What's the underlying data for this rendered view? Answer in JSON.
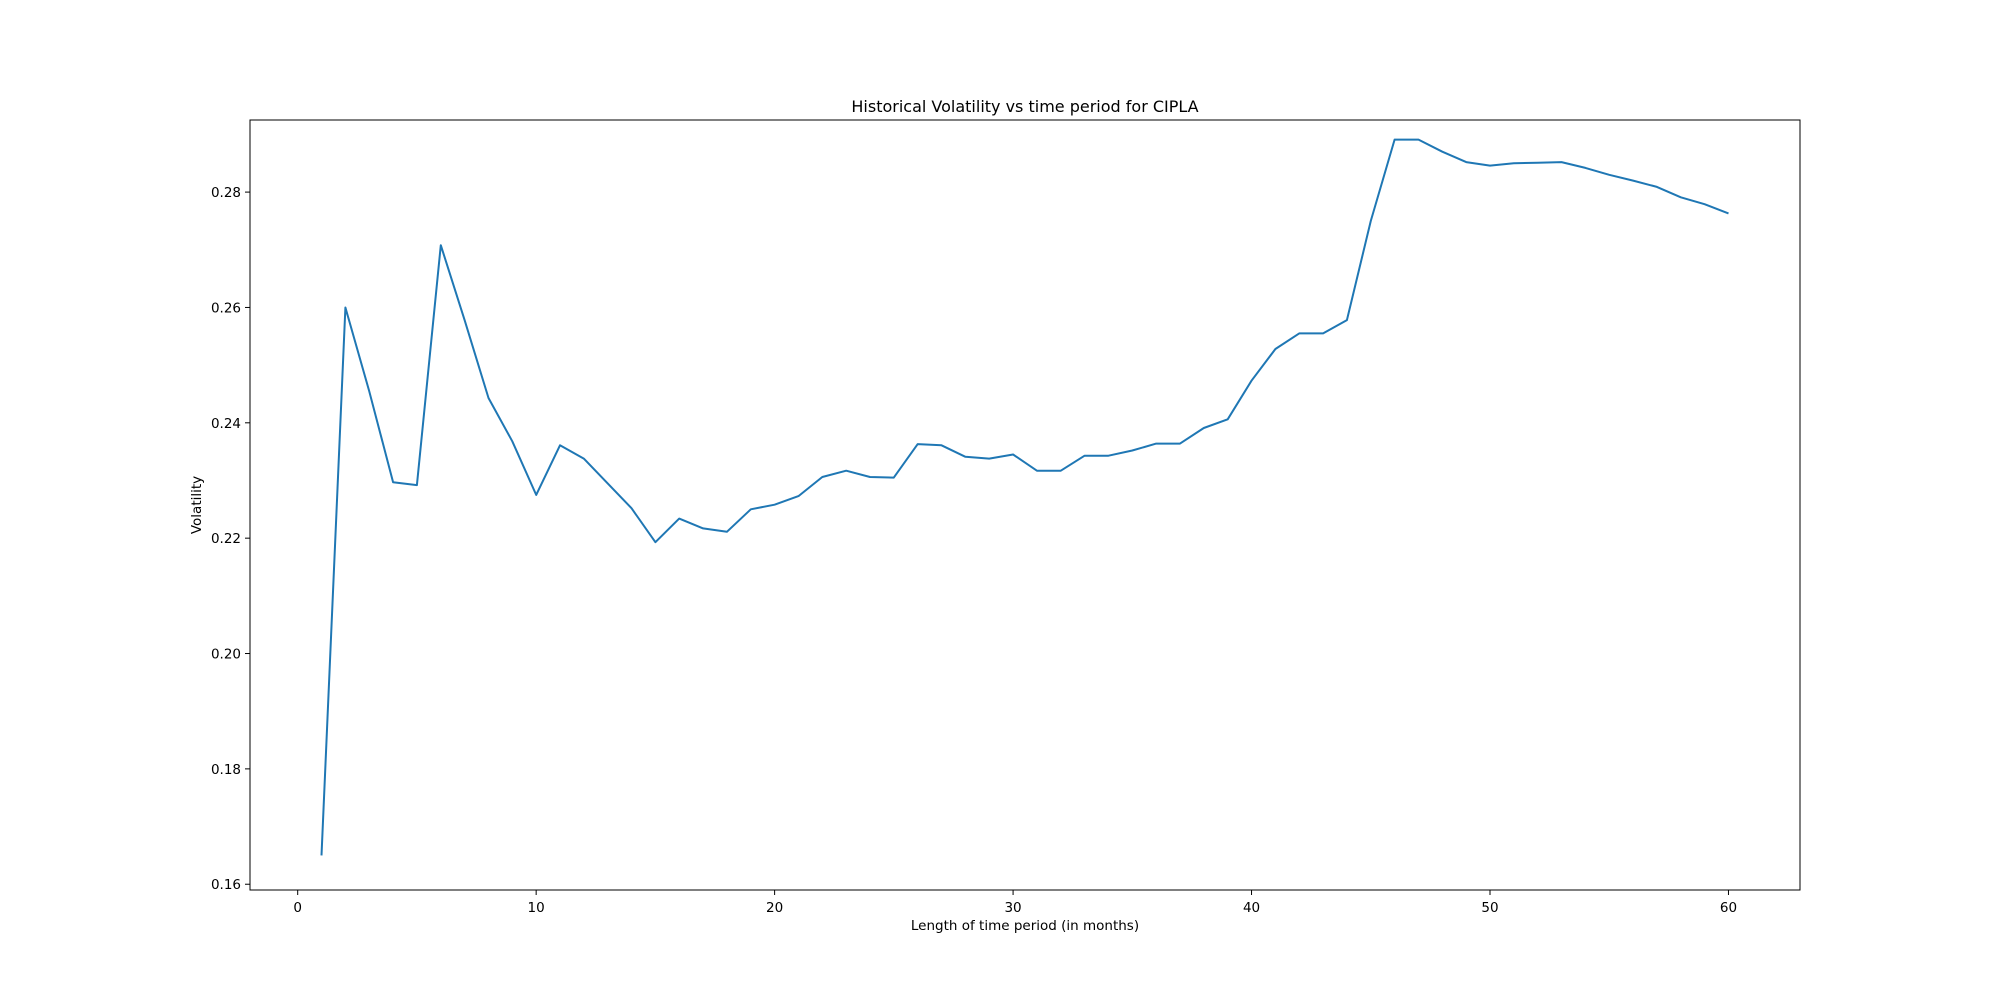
{
  "chart_data": {
    "type": "line",
    "title": "Historical Volatility vs time period for CIPLA",
    "xlabel": "Length of time period (in months)",
    "ylabel": "Volatility",
    "xlim": [
      -2,
      63
    ],
    "ylim": [
      0.159,
      0.2925
    ],
    "grid": false,
    "x_ticks": [
      0,
      10,
      20,
      30,
      40,
      50,
      60
    ],
    "x_tick_labels": [
      "0",
      "10",
      "20",
      "30",
      "40",
      "50",
      "60"
    ],
    "y_ticks": [
      0.16,
      0.18,
      0.2,
      0.22,
      0.24,
      0.26,
      0.28
    ],
    "y_tick_labels": [
      "0.16",
      "0.18",
      "0.20",
      "0.22",
      "0.24",
      "0.26",
      "0.28"
    ],
    "series": [
      {
        "name": "CIPLA",
        "color": "#1f77b4",
        "x": [
          1,
          2,
          3,
          4,
          5,
          6,
          7,
          8,
          9,
          10,
          11,
          12,
          13,
          14,
          15,
          16,
          17,
          18,
          19,
          20,
          21,
          22,
          23,
          24,
          25,
          26,
          27,
          28,
          29,
          30,
          31,
          32,
          33,
          34,
          35,
          36,
          37,
          38,
          39,
          40,
          41,
          42,
          43,
          44,
          45,
          46,
          47,
          48,
          49,
          50,
          51,
          52,
          53,
          54,
          55,
          56,
          57,
          58,
          59,
          60
        ],
        "values": [
          0.165,
          0.26,
          0.2455,
          0.2297,
          0.2292,
          0.2708,
          0.2578,
          0.2443,
          0.2368,
          0.2275,
          0.2361,
          0.2338,
          0.2295,
          0.2252,
          0.2193,
          0.2234,
          0.2217,
          0.2211,
          0.225,
          0.2258,
          0.2273,
          0.2306,
          0.2317,
          0.2306,
          0.2305,
          0.2363,
          0.2361,
          0.2341,
          0.2338,
          0.2345,
          0.2317,
          0.2317,
          0.2343,
          0.2343,
          0.2352,
          0.2364,
          0.2364,
          0.2391,
          0.2406,
          0.2473,
          0.2528,
          0.2555,
          0.2555,
          0.2578,
          0.275,
          0.2891,
          0.2891,
          0.287,
          0.2852,
          0.2846,
          0.285,
          0.2851,
          0.2852,
          0.2842,
          0.283,
          0.282,
          0.2809,
          0.2791,
          0.2779,
          0.2763
        ]
      }
    ]
  }
}
